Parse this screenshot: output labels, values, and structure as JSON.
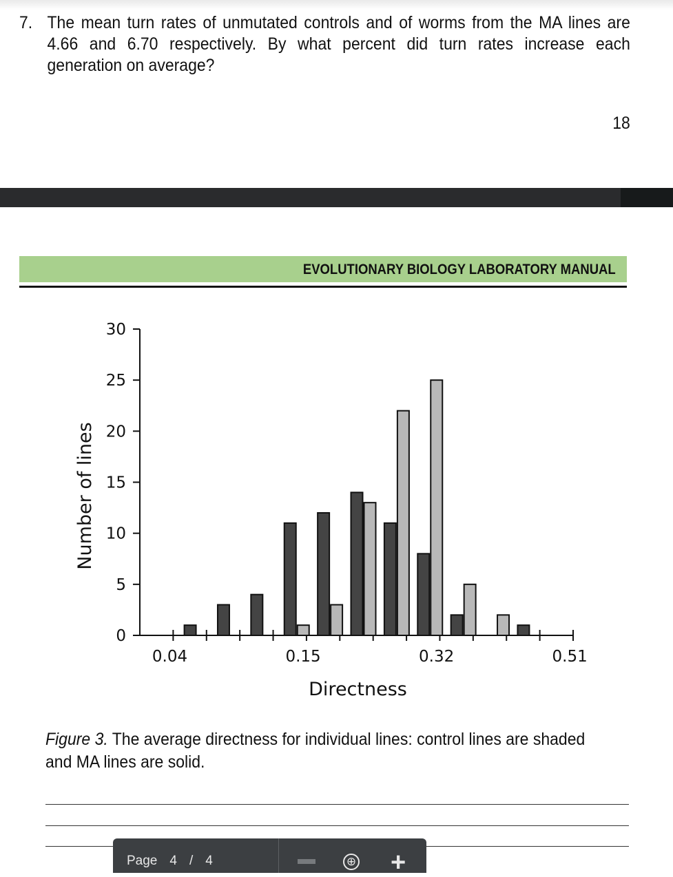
{
  "question": {
    "number": "7.",
    "text": "The mean turn rates of unmutated controls and of worms from the MA lines are 4.66 and 6.70 respectively. By what percent did turn rates increase each generation on average?"
  },
  "page_number": "18",
  "header": {
    "title": "EVOLUTIONARY BIOLOGY LABORATORY MANUAL"
  },
  "chart_data": {
    "type": "bar",
    "xlabel": "Directness",
    "ylabel": "Number of lines",
    "ylim": [
      0,
      30
    ],
    "yticks": [
      0,
      5,
      10,
      15,
      20,
      25,
      30
    ],
    "xtick_labels": [
      "0.04",
      "0.15",
      "0.32",
      "0.51"
    ],
    "xtick_bins": [
      0,
      4,
      8,
      12
    ],
    "bin_count": 13,
    "series": [
      {
        "style": "solid",
        "color": "#444444",
        "values": [
          0,
          1,
          3,
          4,
          11,
          12,
          14,
          11,
          8,
          2,
          0,
          1,
          0
        ]
      },
      {
        "style": "shaded",
        "color": "#b8b8b8",
        "values": [
          0,
          0,
          0,
          0,
          1,
          3,
          13,
          22,
          25,
          5,
          2,
          0,
          0
        ]
      }
    ]
  },
  "caption": {
    "label": "Figure 3.",
    "text": " The average directness for individual lines: control lines are shaded and MA lines are solid."
  },
  "toolbar": {
    "page_label": "Page",
    "current_page": "4",
    "separator": "/",
    "total_pages": "4",
    "zoom_reset_glyph": "⊕",
    "zoom_in_glyph": "+"
  }
}
